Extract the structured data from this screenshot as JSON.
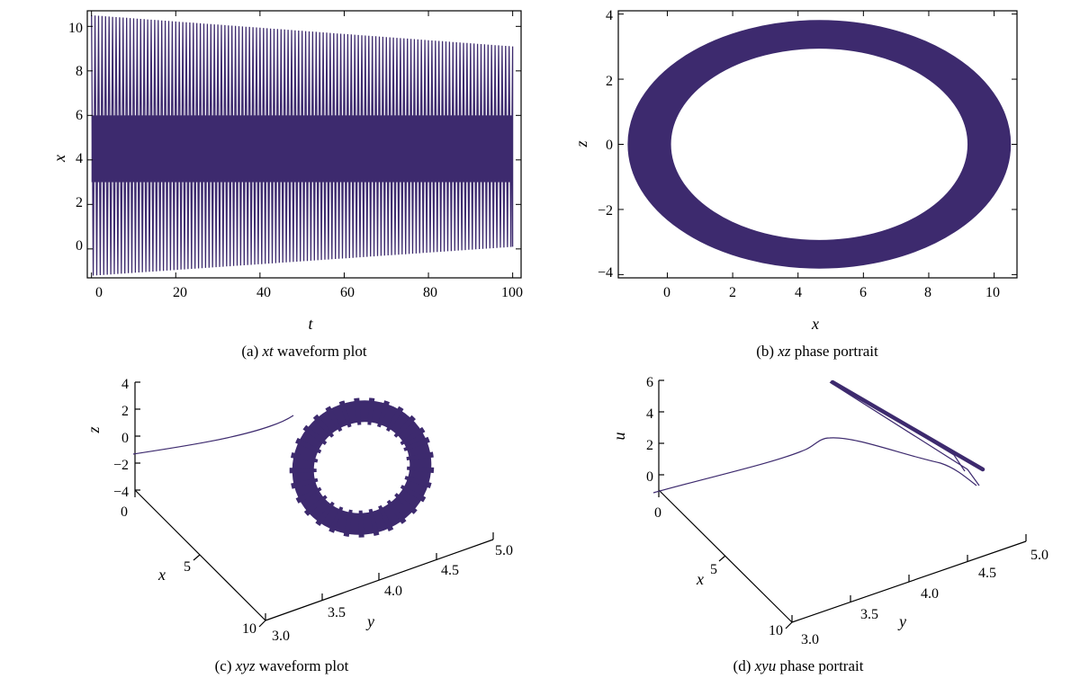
{
  "colors": {
    "series": "#3d2a6e",
    "axis": "#000000"
  },
  "chart_data": [
    {
      "id": "a",
      "type": "line",
      "caption": {
        "prefix": "(a) ",
        "italic": "xt",
        "suffix": " waveform plot"
      },
      "xlabel": "t",
      "ylabel": "x",
      "xlim": [
        -1,
        102
      ],
      "ylim": [
        -1.3,
        10.7
      ],
      "xticks": [
        "0",
        "20",
        "40",
        "60",
        "80",
        "100"
      ],
      "yticks": [
        "0",
        "2",
        "4",
        "6",
        "8",
        "10"
      ],
      "envelope": {
        "t": [
          0,
          100
        ],
        "upper": [
          10.5,
          9.1
        ],
        "lower": [
          -1.2,
          0.1
        ],
        "dense_band": [
          3.0,
          6.0
        ],
        "cycles": 120
      }
    },
    {
      "id": "b",
      "type": "line",
      "caption": {
        "prefix": "(b) ",
        "italic": "xz",
        "suffix": " phase portrait"
      },
      "xlabel": "x",
      "ylabel": "z",
      "xlim": [
        -1.5,
        10.7
      ],
      "ylim": [
        -4.1,
        4.1
      ],
      "xticks": [
        "0",
        "2",
        "4",
        "6",
        "8",
        "10"
      ],
      "yticks": [
        "4",
        "2",
        "0",
        "−2",
        "−4"
      ],
      "ring": {
        "center": [
          4.65,
          0
        ],
        "outer": [
          5.85,
          3.8
        ],
        "inner": [
          4.55,
          2.95
        ]
      }
    },
    {
      "id": "c",
      "type": "line",
      "caption": {
        "prefix": "(c) ",
        "italic": "xyz",
        "suffix": " waveform plot"
      },
      "xlabel": "x",
      "ylabel": "y",
      "zlabel": "z",
      "xticks": [
        "0",
        "5",
        "10"
      ],
      "yticks": [
        "3.0",
        "3.5",
        "4.0",
        "4.5",
        "5.0"
      ],
      "zticks": [
        "4",
        "2",
        "0",
        "−2",
        "−4"
      ]
    },
    {
      "id": "d",
      "type": "line",
      "caption": {
        "prefix": "(d) ",
        "italic": "xyu",
        "suffix": " phase portrait"
      },
      "xlabel": "x",
      "ylabel": "y",
      "zlabel": "u",
      "xticks": [
        "0",
        "5",
        "10"
      ],
      "yticks": [
        "3.0",
        "3.5",
        "4.0",
        "4.5",
        "5.0"
      ],
      "zticks": [
        "6",
        "4",
        "2",
        "0"
      ]
    }
  ]
}
